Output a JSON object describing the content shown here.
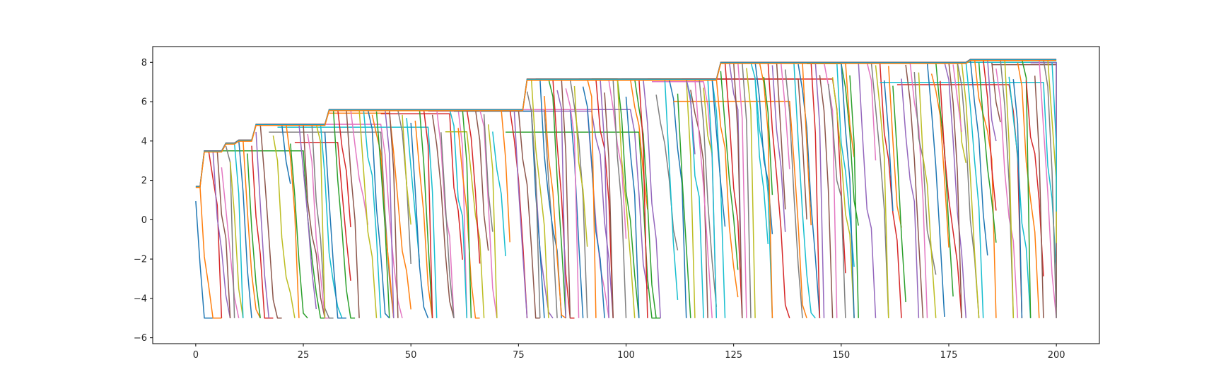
{
  "chart_data": {
    "type": "line",
    "title": "",
    "xlabel": "",
    "ylabel": "",
    "xlim": [
      -10,
      210
    ],
    "ylim": [
      -6.3,
      8.8
    ],
    "xticks": [
      0,
      25,
      50,
      75,
      100,
      125,
      150,
      175,
      200
    ],
    "xtick_labels": [
      "0",
      "25",
      "50",
      "75",
      "100",
      "125",
      "150",
      "175",
      "200"
    ],
    "yticks": [
      -6,
      -4,
      -2,
      0,
      2,
      4,
      6,
      8
    ],
    "ytick_labels": [
      "−6",
      "−4",
      "−2",
      "0",
      "2",
      "4",
      "6",
      "8"
    ],
    "grid": false,
    "legend": "none",
    "series_count": 200,
    "x_range": [
      0,
      200
    ],
    "floor_value": -5,
    "best_so_far_levels": [
      {
        "from_x": 0,
        "value": 1.7
      },
      {
        "from_x": 2,
        "value": 3.5
      },
      {
        "from_x": 7,
        "value": 3.9
      },
      {
        "from_x": 10,
        "value": 4.05
      },
      {
        "from_x": 14,
        "value": 4.85
      },
      {
        "from_x": 31,
        "value": 5.6
      },
      {
        "from_x": 77,
        "value": 7.15
      },
      {
        "from_x": 122,
        "value": 8.0
      },
      {
        "from_x": 180,
        "value": 8.15
      }
    ],
    "colors": [
      "#1f77b4",
      "#ff7f0e",
      "#2ca02c",
      "#d62728",
      "#9467bd",
      "#8c564b",
      "#e377c2",
      "#7f7f7f",
      "#bcbd22",
      "#17becf"
    ]
  }
}
